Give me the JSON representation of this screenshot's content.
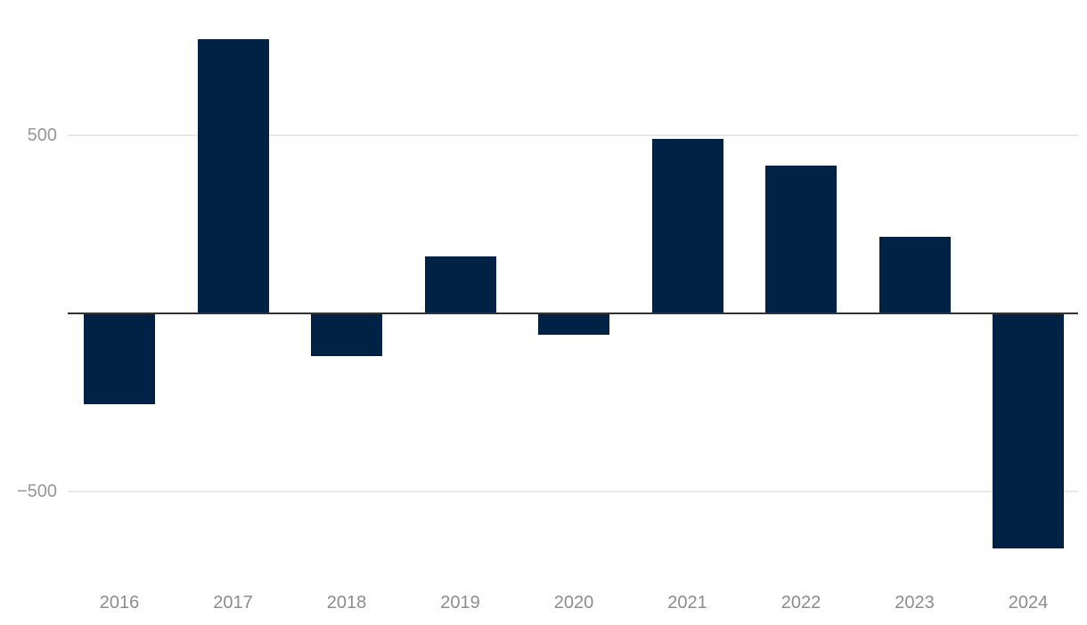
{
  "chart_data": {
    "type": "bar",
    "title": "",
    "xlabel": "",
    "ylabel": "",
    "categories": [
      "2016",
      "2017",
      "2018",
      "2019",
      "2020",
      "2021",
      "2022",
      "2023",
      "2024"
    ],
    "values": [
      -255,
      770,
      -120,
      160,
      -60,
      490,
      415,
      215,
      -660
    ],
    "yticks": [
      {
        "value": 500,
        "label": "500"
      },
      {
        "value": -500,
        "label": "−500"
      }
    ],
    "ylim": [
      -740,
      880
    ],
    "grid": true,
    "legend": false,
    "colors": {
      "bar": "#002345",
      "zero_axis_line": "#333333",
      "gridline": "#e8e8e8",
      "y_tick_label": "#979797",
      "x_tick_label": "#8c8c8c",
      "background": "#ffffff"
    }
  }
}
